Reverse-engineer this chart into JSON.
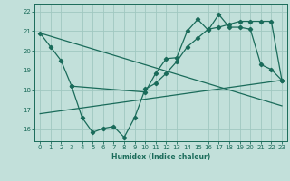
{
  "xlabel": "Humidex (Indice chaleur)",
  "bg_color": "#c2e0da",
  "grid_color": "#a0c8c0",
  "line_color": "#1a6b5a",
  "xlim": [
    -0.5,
    23.5
  ],
  "ylim": [
    15.4,
    22.4
  ],
  "yticks": [
    16,
    17,
    18,
    19,
    20,
    21,
    22
  ],
  "xticks": [
    0,
    1,
    2,
    3,
    4,
    5,
    6,
    7,
    8,
    9,
    10,
    11,
    12,
    13,
    14,
    15,
    16,
    17,
    18,
    19,
    20,
    21,
    22,
    23
  ],
  "line1_x": [
    0,
    1,
    2,
    3,
    10,
    11,
    12,
    13,
    14,
    15,
    16,
    17,
    18,
    19,
    20,
    21,
    22,
    23
  ],
  "line1_y": [
    20.9,
    20.2,
    19.5,
    18.2,
    17.9,
    18.85,
    19.6,
    19.65,
    21.0,
    21.6,
    21.05,
    21.85,
    21.2,
    21.2,
    21.1,
    19.3,
    19.05,
    18.5
  ],
  "line2_x": [
    3,
    4,
    5,
    6,
    7,
    8,
    9,
    10,
    11,
    12,
    13,
    14,
    15,
    16,
    17,
    18,
    19,
    20,
    21,
    22,
    23
  ],
  "line2_y": [
    18.2,
    16.6,
    15.85,
    16.05,
    16.15,
    15.6,
    16.6,
    18.05,
    18.35,
    18.85,
    19.45,
    20.2,
    20.65,
    21.1,
    21.2,
    21.35,
    21.5,
    21.5,
    21.5,
    21.5,
    18.5
  ],
  "line3_x": [
    0,
    23
  ],
  "line3_y": [
    16.8,
    18.5
  ],
  "line4_x": [
    0,
    23
  ],
  "line4_y": [
    20.9,
    17.2
  ]
}
